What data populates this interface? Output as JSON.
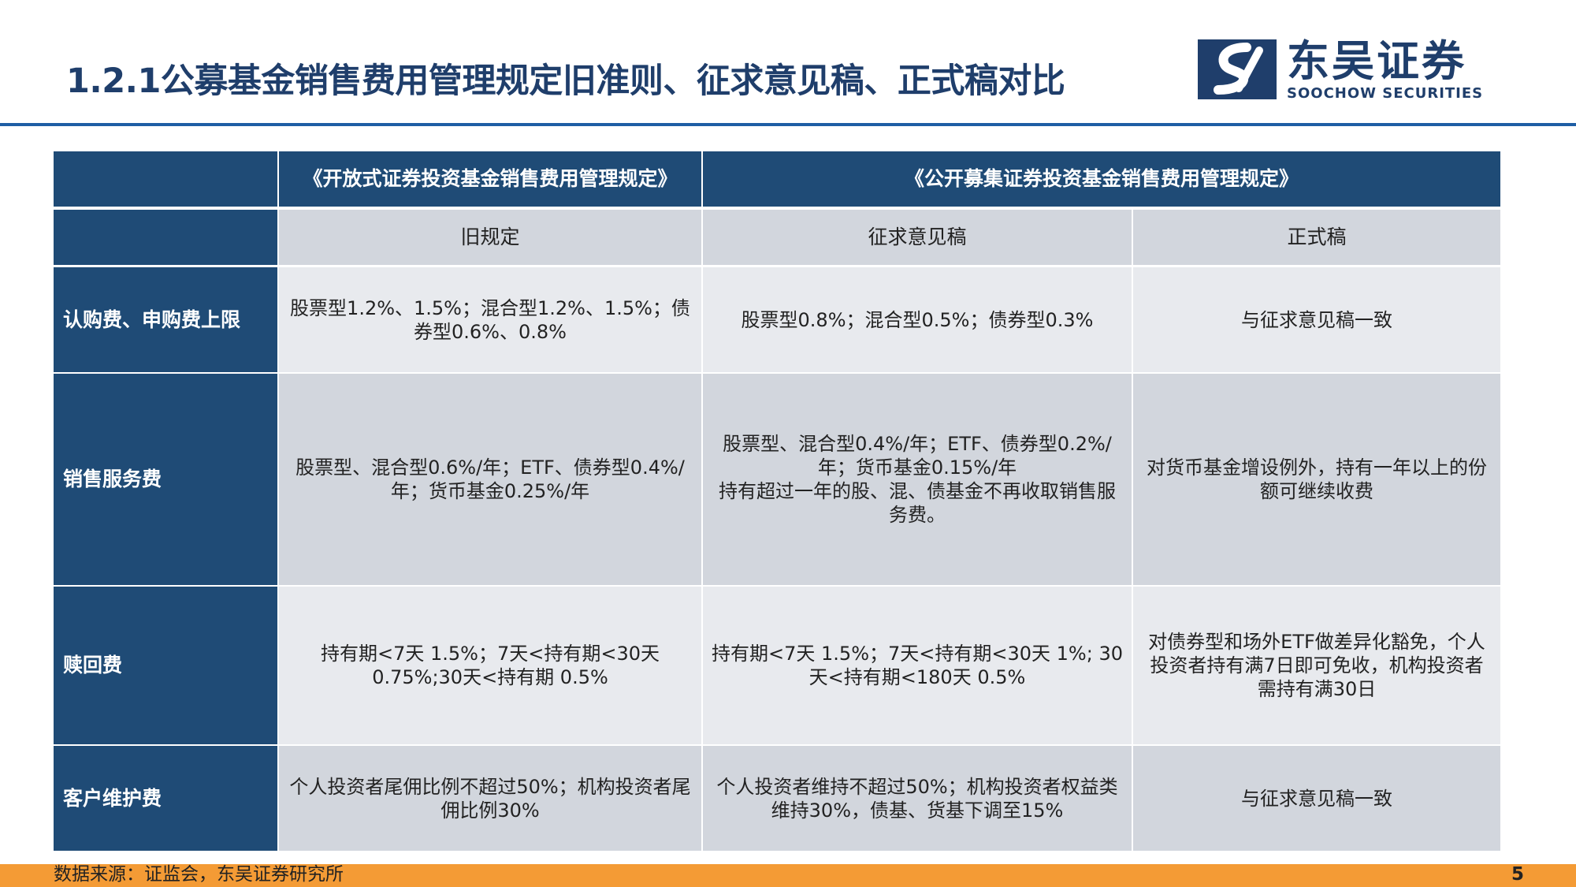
{
  "title": "1.2.1公募基金销售费用管理规定旧准则、征求意见稿、正式稿对比",
  "logo": {
    "cn": "东吴证券",
    "en": "SOOCHOW SECURITIES"
  },
  "colors": {
    "navy": "#1f4b76",
    "accent_blue": "#1e5ea4",
    "orange": "#f49b35"
  },
  "table": {
    "header1": {
      "blank": "",
      "old_regulation": "《开放式证券投资基金销售费用管理规定》",
      "new_regulation": "《公开募集证券投资基金销售费用管理规定》"
    },
    "header2": {
      "blank": "",
      "old": "旧规定",
      "draft": "征求意见稿",
      "final": "正式稿"
    },
    "rows": [
      {
        "label": "认购费、申购费上限",
        "old": "股票型1.2%、1.5%；混合型1.2%、1.5%；债券型0.6%、0.8%",
        "draft": "股票型0.8%；混合型0.5%；债券型0.3%",
        "final": "与征求意见稿一致"
      },
      {
        "label": "销售服务费",
        "old": "股票型、混合型0.6%/年；ETF、债券型0.4%/年；货币基金0.25%/年",
        "draft": "股票型、混合型0.4%/年；ETF、债券型0.2%/年；货币基金0.15%/年\n持有超过一年的股、混、债基金不再收取销售服务费。",
        "final": "对货币基金增设例外，持有一年以上的份额可继续收费"
      },
      {
        "label": "赎回费",
        "old": "持有期<7天 1.5%；7天<持有期<30天 0.75%;30天<持有期 0.5%",
        "draft": "持有期<7天 1.5%；7天<持有期<30天 1%; 30天<持有期<180天 0.5%",
        "final": "对债券型和场外ETF做差异化豁免，个人投资者持有满7日即可免收，机构投资者需持有满30日"
      },
      {
        "label": "客户维护费",
        "old": "个人投资者尾佣比例不超过50%；机构投资者尾佣比例30%",
        "draft": "个人投资者维持不超过50%；机构投资者权益类维持30%，债基、货基下调至15%",
        "final": "与征求意见稿一致"
      }
    ]
  },
  "footer": {
    "source": "数据来源：证监会，东吴证券研究所",
    "page": "5"
  }
}
